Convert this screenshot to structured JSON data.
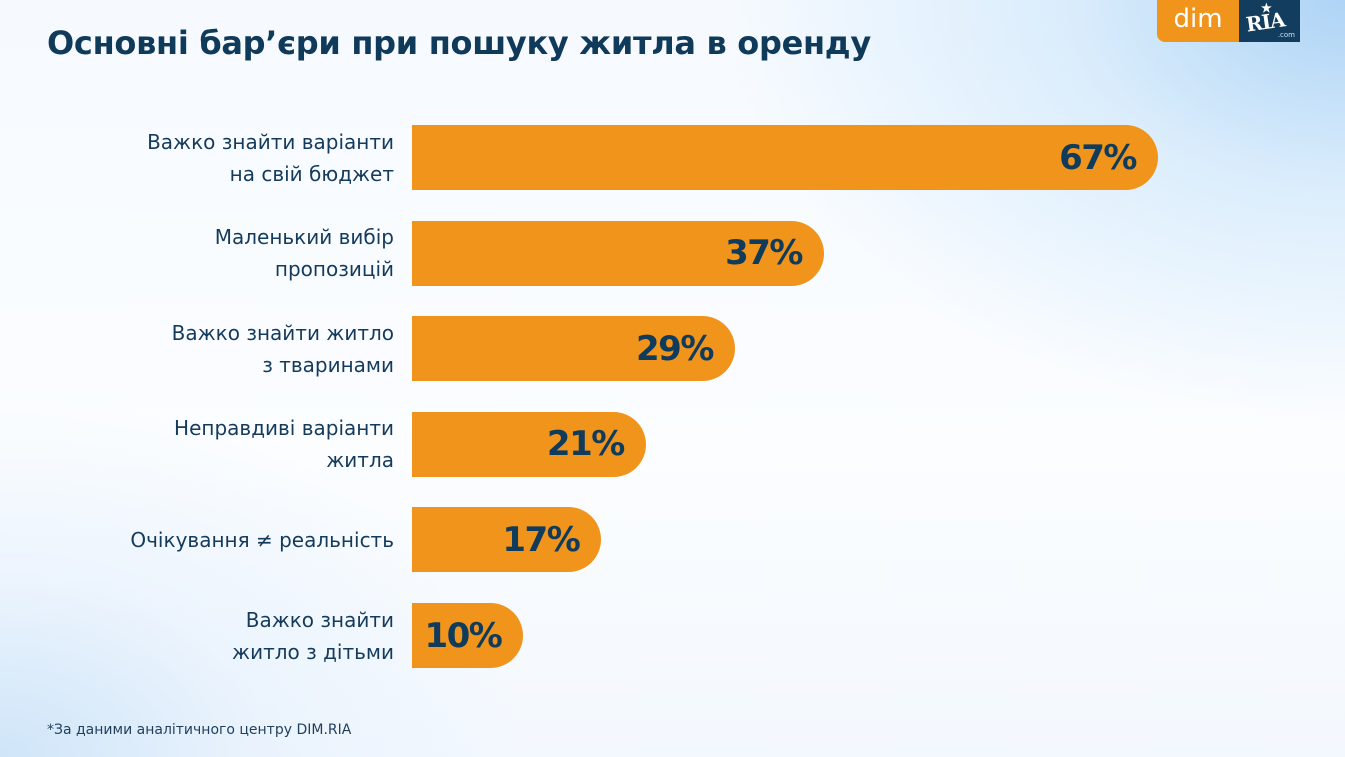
{
  "title": "Основні бар’єри при пошуку житла в оренду",
  "logo": {
    "dim_text": "dim",
    "ria_text": "RIA",
    "ria_suffix": ".com",
    "star_icon": "★"
  },
  "footnote": "*За даними аналітичного центру DIM.RIA",
  "colors": {
    "bar": "#f0941b",
    "text": "#143b5c",
    "value_text": "#103b5b"
  },
  "chart_data": {
    "type": "bar",
    "orientation": "horizontal",
    "title": "Основні бар’єри при пошуку житла в оренду",
    "xlabel": "",
    "ylabel": "",
    "unit": "%",
    "xlim": [
      0,
      100
    ],
    "grid": false,
    "legend": "none",
    "categories": [
      "Важко знайти варіанти\nна свій бюджет",
      "Маленький вибір\nпропозицій",
      "Важко знайти житло\nз тваринами",
      "Неправдиві варіанти\nжитла",
      "Очікування ≠ реальність",
      "Важко знайти\nжитло з дітьми"
    ],
    "values": [
      67,
      37,
      29,
      21,
      17,
      10
    ],
    "value_labels": [
      "67%",
      "37%",
      "29%",
      "21%",
      "17%",
      "10%"
    ]
  }
}
